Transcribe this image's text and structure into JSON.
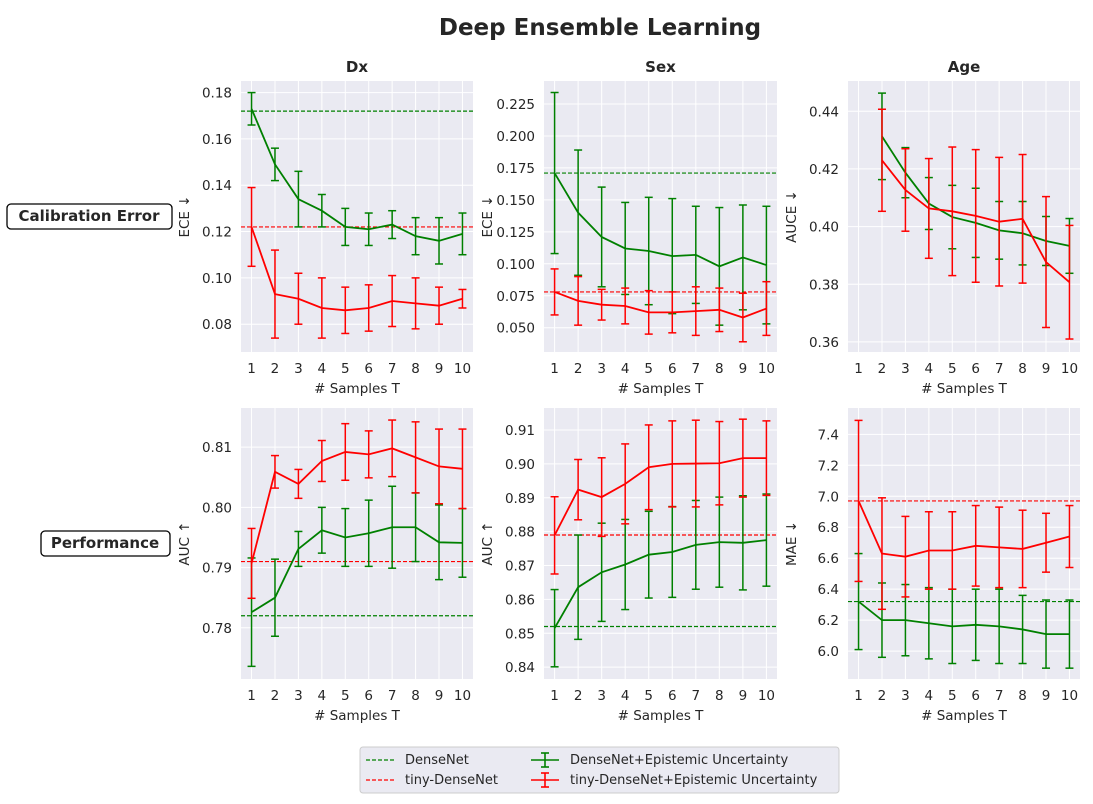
{
  "figure": {
    "title": "Deep Ensemble Learning",
    "row_labels": [
      "Calibration Error",
      "Performance"
    ],
    "colors": {
      "densenet": "#008000",
      "tiny": "#ff0000",
      "axes_bg": "#eaeaf2",
      "grid": "#ffffff"
    },
    "legend": {
      "items": [
        {
          "label": "DenseNet",
          "color": "#008000",
          "style": "dashed"
        },
        {
          "label": "tiny-DenseNet",
          "color": "#ff0000",
          "style": "dashed"
        },
        {
          "label": "DenseNet+Epistemic Uncertainty",
          "color": "#008000",
          "style": "errorbar"
        },
        {
          "label": "tiny-DenseNet+Epistemic Uncertainty",
          "color": "#ff0000",
          "style": "errorbar"
        }
      ]
    }
  },
  "chart_data": [
    {
      "type": "line",
      "title": "Dx",
      "xlabel": "# Samples T",
      "ylabel": "ECE ↓",
      "x": [
        1,
        2,
        3,
        4,
        5,
        6,
        7,
        8,
        9,
        10
      ],
      "xlim": [
        0.55,
        10.45
      ],
      "ylim": [
        0.068,
        0.185
      ],
      "yticks": [
        0.08,
        0.1,
        0.12,
        0.14,
        0.16,
        0.18
      ],
      "ytick_labels": [
        "0.08",
        "0.10",
        "0.12",
        "0.14",
        "0.16",
        "0.18"
      ],
      "baselines": [
        {
          "name": "DenseNet",
          "value": 0.172,
          "color": "#008000"
        },
        {
          "name": "tiny-DenseNet",
          "value": 0.122,
          "color": "#ff0000"
        }
      ],
      "series": [
        {
          "name": "DenseNet+Epistemic Uncertainty",
          "color": "#008000",
          "values": [
            0.173,
            0.149,
            0.134,
            0.129,
            0.122,
            0.121,
            0.123,
            0.118,
            0.116,
            0.119
          ],
          "errors": [
            0.007,
            0.007,
            0.012,
            0.007,
            0.008,
            0.007,
            0.006,
            0.008,
            0.01,
            0.009
          ]
        },
        {
          "name": "tiny-DenseNet+Epistemic Uncertainty",
          "color": "#ff0000",
          "values": [
            0.122,
            0.093,
            0.091,
            0.087,
            0.086,
            0.087,
            0.09,
            0.089,
            0.088,
            0.091
          ],
          "errors": [
            0.017,
            0.019,
            0.011,
            0.013,
            0.01,
            0.01,
            0.011,
            0.011,
            0.008,
            0.004
          ]
        }
      ]
    },
    {
      "type": "line",
      "title": "Sex",
      "xlabel": "# Samples T",
      "ylabel": "ECE ↓",
      "x": [
        1,
        2,
        3,
        4,
        5,
        6,
        7,
        8,
        9,
        10
      ],
      "xlim": [
        0.55,
        10.45
      ],
      "ylim": [
        0.031,
        0.243
      ],
      "yticks": [
        0.05,
        0.075,
        0.1,
        0.125,
        0.15,
        0.175,
        0.2,
        0.225
      ],
      "ytick_labels": [
        "0.050",
        "0.075",
        "0.100",
        "0.125",
        "0.150",
        "0.175",
        "0.200",
        "0.225"
      ],
      "baselines": [
        {
          "name": "DenseNet",
          "value": 0.171,
          "color": "#008000"
        },
        {
          "name": "tiny-DenseNet",
          "value": 0.078,
          "color": "#ff0000"
        }
      ],
      "series": [
        {
          "name": "DenseNet+Epistemic Uncertainty",
          "color": "#008000",
          "values": [
            0.171,
            0.14,
            0.121,
            0.112,
            0.11,
            0.106,
            0.107,
            0.098,
            0.105,
            0.099
          ],
          "errors": [
            0.063,
            0.049,
            0.039,
            0.036,
            0.042,
            0.045,
            0.038,
            0.046,
            0.041,
            0.046
          ]
        },
        {
          "name": "tiny-DenseNet+Epistemic Uncertainty",
          "color": "#ff0000",
          "values": [
            0.078,
            0.071,
            0.068,
            0.067,
            0.062,
            0.062,
            0.063,
            0.064,
            0.058,
            0.065
          ],
          "errors": [
            0.018,
            0.019,
            0.012,
            0.014,
            0.017,
            0.016,
            0.019,
            0.017,
            0.019,
            0.021
          ]
        }
      ]
    },
    {
      "type": "line",
      "title": "Age",
      "xlabel": "# Samples T",
      "ylabel": "AUCE ↓",
      "x": [
        1,
        2,
        3,
        4,
        5,
        6,
        7,
        8,
        9,
        10
      ],
      "xlim": [
        0.55,
        10.45
      ],
      "ylim": [
        0.3565,
        0.4505
      ],
      "yticks": [
        0.36,
        0.38,
        0.4,
        0.42,
        0.44
      ],
      "ytick_labels": [
        "0.36",
        "0.38",
        "0.40",
        "0.42",
        "0.44"
      ],
      "baselines": [],
      "series": [
        {
          "name": "DenseNet+Epistemic Uncertainty",
          "color": "#008000",
          "values": [
            null,
            0.4313,
            0.4187,
            0.408,
            0.4033,
            0.4013,
            0.3987,
            0.3977,
            0.395,
            0.3933
          ],
          "errors": [
            null,
            0.015,
            0.0087,
            0.009,
            0.011,
            0.012,
            0.01,
            0.011,
            0.0085,
            0.0095
          ]
        },
        {
          "name": "tiny-DenseNet+Epistemic Uncertainty",
          "color": "#ff0000",
          "values": [
            null,
            0.423,
            0.4127,
            0.4063,
            0.4053,
            0.4037,
            0.4017,
            0.4027,
            0.3877,
            0.3807
          ],
          "errors": [
            null,
            0.0177,
            0.0143,
            0.0173,
            0.0223,
            0.023,
            0.0223,
            0.0223,
            0.0227,
            0.0197
          ]
        }
      ]
    },
    {
      "type": "line",
      "title": "",
      "xlabel": "# Samples T",
      "ylabel": "AUC ↑",
      "x": [
        1,
        2,
        3,
        4,
        5,
        6,
        7,
        8,
        9,
        10
      ],
      "xlim": [
        0.55,
        10.45
      ],
      "ylim": [
        0.7715,
        0.8165
      ],
      "yticks": [
        0.78,
        0.79,
        0.8,
        0.81
      ],
      "ytick_labels": [
        "0.78",
        "0.79",
        "0.80",
        "0.81"
      ],
      "baselines": [
        {
          "name": "DenseNet",
          "value": 0.782,
          "color": "#008000"
        },
        {
          "name": "tiny-DenseNet",
          "value": 0.791,
          "color": "#ff0000"
        }
      ],
      "series": [
        {
          "name": "DenseNet+Epistemic Uncertainty",
          "color": "#008000",
          "values": [
            0.7826,
            0.785,
            0.7931,
            0.7962,
            0.795,
            0.7957,
            0.7967,
            0.7967,
            0.7942,
            0.7941
          ],
          "errors": [
            0.009,
            0.0064,
            0.0029,
            0.0038,
            0.0048,
            0.0055,
            0.0068,
            0.0057,
            0.0062,
            0.0057
          ]
        },
        {
          "name": "tiny-DenseNet+Epistemic Uncertainty",
          "color": "#ff0000",
          "values": [
            0.7907,
            0.8059,
            0.8039,
            0.8077,
            0.8092,
            0.8088,
            0.8098,
            0.8083,
            0.8068,
            0.8064
          ],
          "errors": [
            0.0058,
            0.0027,
            0.0024,
            0.0034,
            0.0047,
            0.0039,
            0.0047,
            0.0059,
            0.0062,
            0.0066
          ]
        }
      ]
    },
    {
      "type": "line",
      "title": "",
      "xlabel": "# Samples T",
      "ylabel": "AUC ↑",
      "x": [
        1,
        2,
        3,
        4,
        5,
        6,
        7,
        8,
        9,
        10
      ],
      "xlim": [
        0.55,
        10.45
      ],
      "ylim": [
        0.8365,
        0.9165
      ],
      "yticks": [
        0.84,
        0.85,
        0.86,
        0.87,
        0.88,
        0.89,
        0.9,
        0.91
      ],
      "ytick_labels": [
        "0.84",
        "0.85",
        "0.86",
        "0.87",
        "0.88",
        "0.89",
        "0.90",
        "0.91"
      ],
      "baselines": [
        {
          "name": "DenseNet",
          "value": 0.852,
          "color": "#008000"
        },
        {
          "name": "tiny-DenseNet",
          "value": 0.879,
          "color": "#ff0000"
        }
      ],
      "series": [
        {
          "name": "DenseNet+Epistemic Uncertainty",
          "color": "#008000",
          "values": [
            0.8515,
            0.8636,
            0.868,
            0.8703,
            0.8732,
            0.874,
            0.8761,
            0.8769,
            0.8767,
            0.8775
          ],
          "errors": [
            0.0114,
            0.0154,
            0.0145,
            0.0133,
            0.0128,
            0.0134,
            0.0131,
            0.0133,
            0.0139,
            0.0136
          ]
        },
        {
          "name": "tiny-DenseNet+Epistemic Uncertainty",
          "color": "#ff0000",
          "values": [
            0.8789,
            0.8924,
            0.8902,
            0.8941,
            0.899,
            0.9,
            0.9001,
            0.9002,
            0.9017,
            0.9017
          ],
          "errors": [
            0.0114,
            0.0089,
            0.0116,
            0.0118,
            0.0125,
            0.0127,
            0.0128,
            0.0123,
            0.0115,
            0.011
          ]
        }
      ]
    },
    {
      "type": "line",
      "title": "",
      "xlabel": "# Samples T",
      "ylabel": "MAE ↓",
      "x": [
        1,
        2,
        3,
        4,
        5,
        6,
        7,
        8,
        9,
        10
      ],
      "xlim": [
        0.55,
        10.45
      ],
      "ylim": [
        5.82,
        7.57
      ],
      "yticks": [
        6.0,
        6.2,
        6.4,
        6.6,
        6.8,
        7.0,
        7.2,
        7.4
      ],
      "ytick_labels": [
        "6.0",
        "6.2",
        "6.4",
        "6.6",
        "6.8",
        "7.0",
        "7.2",
        "7.4"
      ],
      "baselines": [
        {
          "name": "DenseNet",
          "value": 6.32,
          "color": "#008000"
        },
        {
          "name": "tiny-DenseNet",
          "value": 6.97,
          "color": "#ff0000"
        }
      ],
      "series": [
        {
          "name": "DenseNet+Epistemic Uncertainty",
          "color": "#008000",
          "values": [
            6.32,
            6.2,
            6.2,
            6.18,
            6.16,
            6.17,
            6.16,
            6.14,
            6.11,
            6.11
          ],
          "errors": [
            0.31,
            0.24,
            0.23,
            0.23,
            0.24,
            0.23,
            0.24,
            0.22,
            0.22,
            0.22
          ]
        },
        {
          "name": "tiny-DenseNet+Epistemic Uncertainty",
          "color": "#ff0000",
          "values": [
            6.97,
            6.63,
            6.61,
            6.65,
            6.65,
            6.68,
            6.67,
            6.66,
            6.7,
            6.74
          ],
          "errors": [
            0.52,
            0.36,
            0.26,
            0.25,
            0.25,
            0.26,
            0.26,
            0.25,
            0.19,
            0.2
          ]
        }
      ]
    }
  ]
}
